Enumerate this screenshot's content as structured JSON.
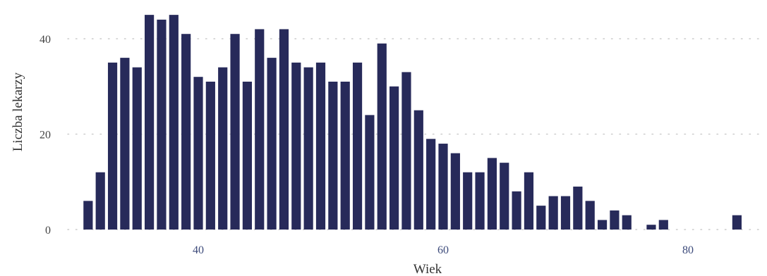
{
  "chart_data": {
    "type": "bar",
    "title": "",
    "xlabel": "Wiek",
    "ylabel": "Liczba lekarzy",
    "x": [
      31,
      32,
      33,
      34,
      35,
      36,
      37,
      38,
      39,
      40,
      41,
      42,
      43,
      44,
      45,
      46,
      47,
      48,
      49,
      50,
      51,
      52,
      53,
      54,
      55,
      56,
      57,
      58,
      59,
      60,
      61,
      62,
      63,
      64,
      65,
      66,
      67,
      68,
      69,
      70,
      71,
      72,
      73,
      74,
      75,
      76,
      77,
      78,
      79,
      80,
      81,
      82,
      83,
      84,
      85
    ],
    "values": [
      6,
      12,
      35,
      36,
      34,
      45,
      44,
      45,
      41,
      32,
      31,
      34,
      41,
      31,
      42,
      36,
      42,
      35,
      34,
      35,
      31,
      31,
      35,
      24,
      39,
      30,
      33,
      25,
      19,
      18,
      16,
      12,
      12,
      15,
      14,
      8,
      12,
      5,
      7,
      7,
      9,
      6,
      2,
      4,
      3,
      0,
      1,
      2,
      0,
      0,
      0,
      0,
      0,
      3,
      0
    ],
    "xlim": [
      30,
      86
    ],
    "ylim": [
      0,
      45
    ],
    "x_ticks": [
      "40",
      "60",
      "80"
    ],
    "y_ticks": [
      "0",
      "20",
      "40"
    ],
    "grid": "horizontal-dotted",
    "bar_color": "#272a5a",
    "x_tick_color": "#3c4a7a",
    "y_tick_color": "#444444",
    "grid_color": "#cccccc"
  }
}
